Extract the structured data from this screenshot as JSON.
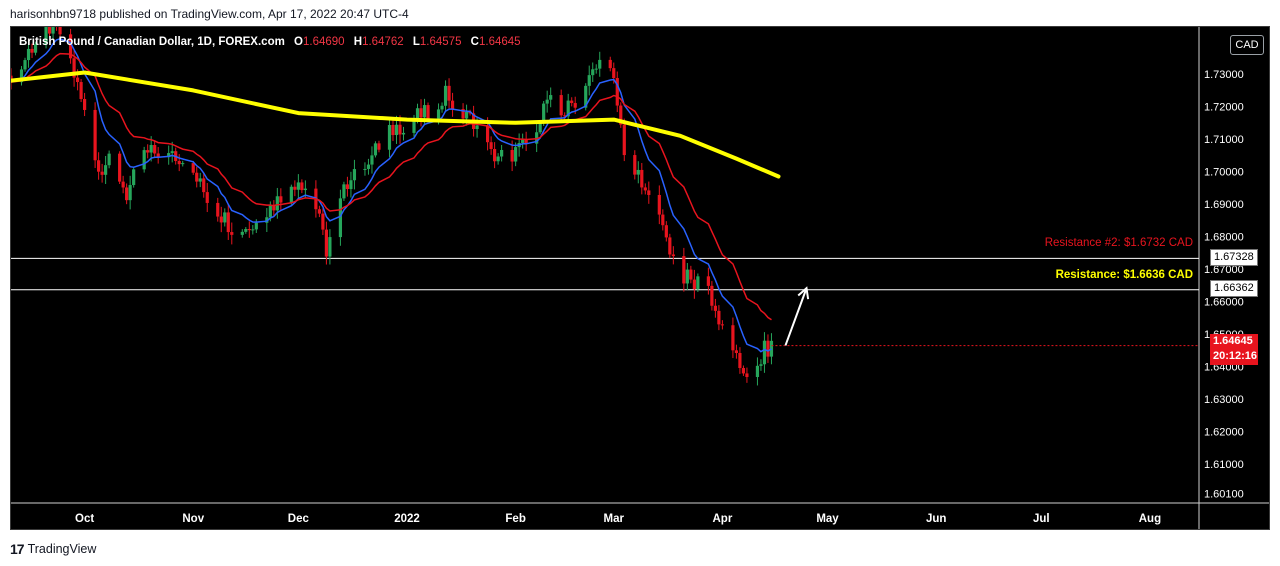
{
  "header": {
    "published": "harisonhbn9718 published on TradingView.com, Apr 17, 2022 20:47 UTC-4"
  },
  "legend": {
    "symbol": "British Pound / Canadian Dollar, 1D, FOREX.com",
    "o_label": "O",
    "o_value": "1.64690",
    "h_label": "H",
    "h_value": "1.64762",
    "l_label": "L",
    "l_value": "1.64575",
    "c_label": "C",
    "c_value": "1.64645"
  },
  "currency_badge": "CAD",
  "price_labels": {
    "resistance2": "1.67328",
    "resistance1": "1.66362",
    "last_price": "1.64645",
    "countdown": "20:12:16"
  },
  "levels": {
    "resistance2_text": "Resistance #2: $1.6732 CAD",
    "resistance1_text": "Resistance: $1.6636 CAD"
  },
  "footer": {
    "logo_mark": "17",
    "brand": "TradingView"
  },
  "colors": {
    "background": "#000000",
    "up": "#26a65b",
    "down": "#e8141e",
    "ma_slow": "#ffff00",
    "ma_mid": "#e8141e",
    "ma_fast": "#2962ff",
    "resistance2": "#e8141e",
    "resistance1": "#ffff00"
  },
  "chart_data": {
    "type": "candlestick",
    "y_tick_labels": [
      "1.73000",
      "1.72000",
      "1.71000",
      "1.70000",
      "1.69000",
      "1.68000",
      "1.67000",
      "1.66000",
      "1.65000",
      "1.64000",
      "1.63000",
      "1.62000",
      "1.61000",
      "1.60100"
    ],
    "y_ticks": [
      1.73,
      1.72,
      1.71,
      1.7,
      1.69,
      1.68,
      1.67,
      1.66,
      1.65,
      1.64,
      1.63,
      1.62,
      1.61,
      1.601
    ],
    "ylim": [
      1.598,
      1.7445
    ],
    "x_tick_labels": [
      "Oct",
      "Nov",
      "Dec",
      "2022",
      "Feb",
      "Mar",
      "Apr",
      "May",
      "Jun",
      "Jul",
      "Aug"
    ],
    "x_ticks": [
      "2021-10-01",
      "2021-11-01",
      "2021-12-01",
      "2022-01-01",
      "2022-02-01",
      "2022-03-01",
      "2022-04-01",
      "2022-05-01",
      "2022-06-01",
      "2022-07-01",
      "2022-08-01"
    ],
    "xlim": [
      "2021-09-10",
      "2022-08-15"
    ],
    "close_anchors": [
      {
        "date": "2021-09-10",
        "close": 1.725
      },
      {
        "date": "2021-09-15",
        "close": 1.737
      },
      {
        "date": "2021-09-20",
        "close": 1.745
      },
      {
        "date": "2021-09-25",
        "close": 1.742
      },
      {
        "date": "2021-10-01",
        "close": 1.718
      },
      {
        "date": "2021-10-05",
        "close": 1.7
      },
      {
        "date": "2021-10-08",
        "close": 1.706
      },
      {
        "date": "2021-10-13",
        "close": 1.693
      },
      {
        "date": "2021-10-18",
        "close": 1.705
      },
      {
        "date": "2021-10-25",
        "close": 1.707
      },
      {
        "date": "2021-10-30",
        "close": 1.703
      },
      {
        "date": "2021-11-05",
        "close": 1.692
      },
      {
        "date": "2021-11-12",
        "close": 1.683
      },
      {
        "date": "2021-11-18",
        "close": 1.683
      },
      {
        "date": "2021-11-23",
        "close": 1.689
      },
      {
        "date": "2021-12-01",
        "close": 1.698
      },
      {
        "date": "2021-12-05",
        "close": 1.693
      },
      {
        "date": "2021-12-09",
        "close": 1.676
      },
      {
        "date": "2021-12-12",
        "close": 1.687
      },
      {
        "date": "2021-12-16",
        "close": 1.7
      },
      {
        "date": "2021-12-22",
        "close": 1.705
      },
      {
        "date": "2021-12-28",
        "close": 1.713
      },
      {
        "date": "2022-01-04",
        "close": 1.717
      },
      {
        "date": "2022-01-08",
        "close": 1.718
      },
      {
        "date": "2022-01-12",
        "close": 1.725
      },
      {
        "date": "2022-01-16",
        "close": 1.717
      },
      {
        "date": "2022-01-20",
        "close": 1.716
      },
      {
        "date": "2022-01-25",
        "close": 1.705
      },
      {
        "date": "2022-01-30",
        "close": 1.705
      },
      {
        "date": "2022-02-04",
        "close": 1.708
      },
      {
        "date": "2022-02-10",
        "close": 1.722
      },
      {
        "date": "2022-02-15",
        "close": 1.718
      },
      {
        "date": "2022-02-20",
        "close": 1.725
      },
      {
        "date": "2022-02-26",
        "close": 1.735
      },
      {
        "date": "2022-03-01",
        "close": 1.727
      },
      {
        "date": "2022-03-04",
        "close": 1.707
      },
      {
        "date": "2022-03-10",
        "close": 1.693
      },
      {
        "date": "2022-03-16",
        "close": 1.68
      },
      {
        "date": "2022-03-19",
        "close": 1.67
      },
      {
        "date": "2022-03-24",
        "close": 1.665
      },
      {
        "date": "2022-03-27",
        "close": 1.668
      },
      {
        "date": "2022-03-30",
        "close": 1.657
      },
      {
        "date": "2022-04-03",
        "close": 1.644
      },
      {
        "date": "2022-04-06",
        "close": 1.64
      },
      {
        "date": "2022-04-10",
        "close": 1.637
      },
      {
        "date": "2022-04-13",
        "close": 1.645
      },
      {
        "date": "2022-04-17",
        "close": 1.64645
      }
    ],
    "ma_slow": [
      {
        "date": "2021-09-10",
        "value": 1.728
      },
      {
        "date": "2021-10-01",
        "value": 1.7305
      },
      {
        "date": "2021-11-01",
        "value": 1.725
      },
      {
        "date": "2021-12-01",
        "value": 1.718
      },
      {
        "date": "2022-01-01",
        "value": 1.716
      },
      {
        "date": "2022-02-01",
        "value": 1.715
      },
      {
        "date": "2022-03-01",
        "value": 1.716
      },
      {
        "date": "2022-03-20",
        "value": 1.711
      },
      {
        "date": "2022-04-05",
        "value": 1.704
      },
      {
        "date": "2022-04-17",
        "value": 1.6985
      }
    ],
    "resistance_levels": [
      1.67328,
      1.66362
    ],
    "last_price": 1.64645,
    "arrow": {
      "from": {
        "date": "2022-04-19",
        "value": 1.6465
      },
      "to": {
        "date": "2022-04-25",
        "value": 1.6641
      }
    }
  }
}
